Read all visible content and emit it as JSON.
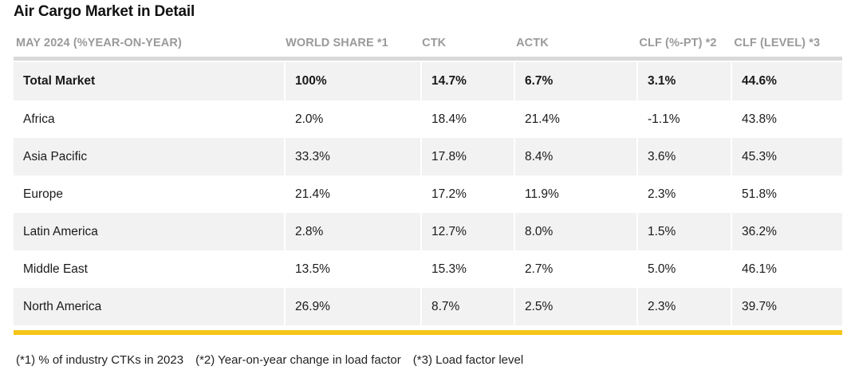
{
  "title": "Air Cargo Market in Detail",
  "headers": [
    "MAY 2024 (%YEAR-ON-YEAR)",
    "WORLD SHARE *1",
    "CTK",
    "ACTK",
    "CLF (%-PT) *2",
    "CLF (LEVEL) *3"
  ],
  "rows": [
    {
      "region": "Total Market",
      "world_share": "100%",
      "ctk": "14.7%",
      "actk": "6.7%",
      "clf_pt": "3.1%",
      "clf_level": "44.6%"
    },
    {
      "region": "Africa",
      "world_share": "2.0%",
      "ctk": "18.4%",
      "actk": "21.4%",
      "clf_pt": "-1.1%",
      "clf_level": "43.8%"
    },
    {
      "region": "Asia Pacific",
      "world_share": "33.3%",
      "ctk": "17.8%",
      "actk": "8.4%",
      "clf_pt": "3.6%",
      "clf_level": "45.3%"
    },
    {
      "region": "Europe",
      "world_share": "21.4%",
      "ctk": "17.2%",
      "actk": "11.9%",
      "clf_pt": "2.3%",
      "clf_level": "51.8%"
    },
    {
      "region": "Latin America",
      "world_share": "2.8%",
      "ctk": "12.7%",
      "actk": "8.0%",
      "clf_pt": "1.5%",
      "clf_level": "36.2%"
    },
    {
      "region": "Middle East",
      "world_share": "13.5%",
      "ctk": "15.3%",
      "actk": "2.7%",
      "clf_pt": "5.0%",
      "clf_level": "46.1%"
    },
    {
      "region": "North America",
      "world_share": "26.9%",
      "ctk": "8.7%",
      "actk": "2.5%",
      "clf_pt": "2.3%",
      "clf_level": "39.7%"
    }
  ],
  "footnotes": [
    "(*1) % of industry CTKs in 2023",
    "(*2) Year-on-year change in load factor",
    "(*3) Load factor level"
  ],
  "colors": {
    "accent_bar": "#f5c518",
    "shaded_row": "#f2f2f2",
    "header_text": "#9a9a9a"
  }
}
